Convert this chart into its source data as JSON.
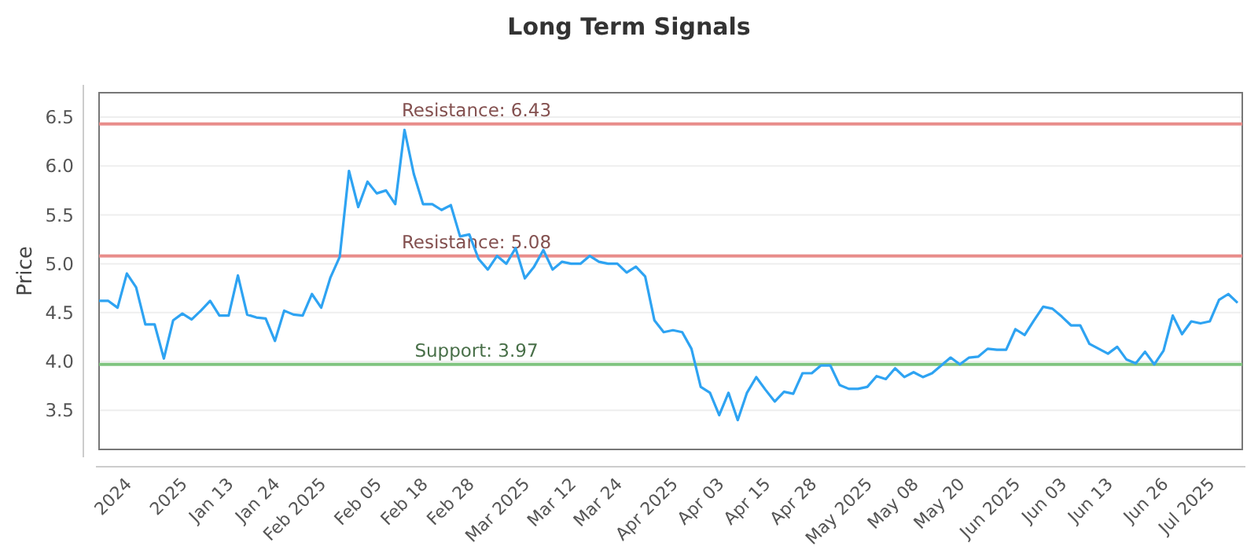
{
  "chart_data": {
    "type": "line",
    "title": "Long Term Signals",
    "ylabel": "Price",
    "categories": [
      null,
      null,
      null,
      "2024",
      null,
      null,
      null,
      null,
      null,
      "2025",
      null,
      null,
      null,
      null,
      "Jan 13",
      null,
      null,
      null,
      null,
      "Jan 24",
      null,
      null,
      null,
      null,
      "Feb 2025",
      null,
      null,
      null,
      null,
      null,
      "Feb 05",
      null,
      null,
      null,
      null,
      "Feb 18",
      null,
      null,
      null,
      null,
      "Feb 28",
      null,
      null,
      null,
      null,
      null,
      "Mar 2025",
      null,
      null,
      null,
      null,
      "Mar 12",
      null,
      null,
      null,
      null,
      "Mar 24",
      null,
      null,
      null,
      null,
      null,
      "Apr 2025",
      null,
      null,
      null,
      null,
      "Apr 03",
      null,
      null,
      null,
      null,
      "Apr 15",
      null,
      null,
      null,
      null,
      "Apr 28",
      null,
      null,
      null,
      null,
      null,
      "May 2025",
      null,
      null,
      null,
      null,
      "May 08",
      null,
      null,
      null,
      null,
      "May 20",
      null,
      null,
      null,
      null,
      null,
      "Jun 2025",
      null,
      null,
      null,
      null,
      "Jun 03",
      null,
      null,
      null,
      null,
      "Jun 13",
      null,
      null,
      null,
      null,
      null,
      "Jun 26",
      null,
      null,
      null,
      null,
      "Jul 2025",
      null,
      null,
      null
    ],
    "series": [
      {
        "color": "#2ea3f2",
        "values": [
          4.62,
          4.62,
          4.55,
          4.9,
          4.76,
          4.38,
          4.38,
          4.03,
          4.42,
          4.49,
          4.43,
          4.52,
          4.62,
          4.47,
          4.47,
          4.88,
          4.48,
          4.45,
          4.44,
          4.21,
          4.52,
          4.48,
          4.47,
          4.69,
          4.55,
          4.86,
          5.07,
          5.95,
          5.58,
          5.84,
          5.72,
          5.75,
          5.61,
          6.37,
          5.92,
          5.61,
          5.61,
          5.55,
          5.6,
          5.28,
          5.3,
          5.05,
          4.94,
          5.08,
          5.0,
          5.16,
          4.85,
          4.97,
          5.14,
          4.94,
          5.02,
          5.0,
          5.0,
          5.08,
          5.02,
          5.0,
          5.0,
          4.91,
          4.97,
          4.87,
          4.42,
          4.3,
          4.32,
          4.3,
          4.13,
          3.74,
          3.68,
          3.45,
          3.68,
          3.4,
          3.68,
          3.84,
          3.71,
          3.59,
          3.69,
          3.67,
          3.88,
          3.88,
          3.96,
          3.96,
          3.76,
          3.72,
          3.72,
          3.74,
          3.85,
          3.82,
          3.93,
          3.84,
          3.89,
          3.84,
          3.88,
          3.96,
          4.04,
          3.97,
          4.04,
          4.05,
          4.13,
          4.12,
          4.12,
          4.33,
          4.27,
          4.42,
          4.56,
          4.54,
          4.46,
          4.37,
          4.37,
          4.18,
          4.13,
          4.08,
          4.15,
          4.02,
          3.98,
          4.1,
          3.97,
          4.11,
          4.47,
          4.28,
          4.41,
          4.39,
          4.41,
          4.63,
          4.69,
          4.6
        ]
      }
    ],
    "ylim": [
      3.1,
      6.75
    ],
    "yticks": [
      3.5,
      {
        "value": 4,
        "label": "4.0"
      },
      4.5,
      {
        "value": 5,
        "label": "5.0"
      },
      5.5,
      {
        "value": 6,
        "label": "6.0"
      },
      6.5
    ],
    "ref_lines": [
      {
        "axis": "y",
        "value": 6.43,
        "label": "Resistance: 6.43",
        "color": "#e88d8b"
      },
      {
        "axis": "y",
        "value": 5.08,
        "label": "Resistance: 5.08",
        "color": "#e88d8b"
      },
      {
        "axis": "y",
        "value": 3.97,
        "label": "Support: 3.97",
        "color": "#7fc47f"
      }
    ],
    "grid": "y",
    "marker": "none",
    "line_style": "solid"
  }
}
